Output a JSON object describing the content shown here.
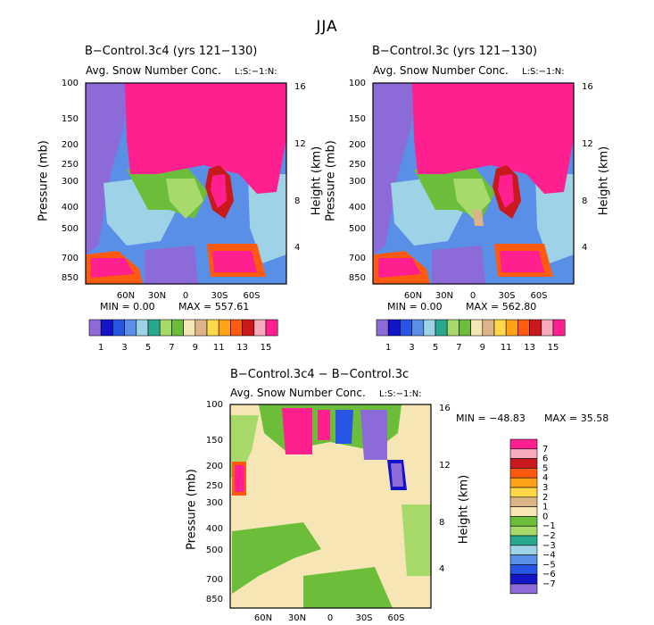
{
  "page": {
    "title": "JJA"
  },
  "colors": {
    "abs_levels": [
      "#8c6bd8",
      "#1313c8",
      "#2755e6",
      "#5a8fe8",
      "#9ed2e6",
      "#2aa88f",
      "#a7d96b",
      "#6cbd3a",
      "#f6e6b6",
      "#dcb487",
      "#ffd84a",
      "#ffa21a",
      "#ff5a10",
      "#c9191c",
      "#f7aabb",
      "#ff1f8f"
    ],
    "diff_levels": [
      "#8c6bd8",
      "#1313c8",
      "#2755e6",
      "#5a8fe8",
      "#9ed2e6",
      "#2aa88f",
      "#a7d96b",
      "#6cbd3a",
      "#f6e6b6",
      "#dcb487",
      "#ffd84a",
      "#ffa21a",
      "#ff5a10",
      "#c9191c",
      "#f7aabb",
      "#ff1f8f"
    ]
  },
  "chart_data": [
    {
      "type": "heatmap",
      "title": "B−Control.3c4 (yrs 121−130)",
      "subtitle": "Avg. Snow Number Conc.",
      "side_label": "L:S:−1:N:",
      "ylabel": "Pressure (mb)",
      "ylabel_right": "Height (km)",
      "x_ticks": [
        "60N",
        "30N",
        "0",
        "30S",
        "60S"
      ],
      "y_ticks": [
        "100",
        "150",
        "200",
        "250",
        "300",
        "400",
        "500",
        "700",
        "850"
      ],
      "y_ticks_right": [
        "16",
        "12",
        "8",
        "4"
      ],
      "min_text": "MIN =    0.00",
      "max_text": "MAX = 557.61",
      "colorbar_labels": [
        "1",
        "3",
        "5",
        "7",
        "9",
        "11",
        "13",
        "15"
      ],
      "colorbar_levels": 16
    },
    {
      "type": "heatmap",
      "title": "B−Control.3c (yrs 121−130)",
      "subtitle": "Avg. Snow Number Conc.",
      "side_label": "L:S:−1:N:",
      "ylabel": "Pressure (mb)",
      "ylabel_right": "Height (km)",
      "x_ticks": [
        "60N",
        "30N",
        "0",
        "30S",
        "60S"
      ],
      "y_ticks": [
        "100",
        "150",
        "200",
        "250",
        "300",
        "400",
        "500",
        "700",
        "850"
      ],
      "y_ticks_right": [
        "16",
        "12",
        "8",
        "4"
      ],
      "min_text": "MIN =    0.00",
      "max_text": "MAX = 562.80",
      "colorbar_labels": [
        "1",
        "3",
        "5",
        "7",
        "9",
        "11",
        "13",
        "15"
      ],
      "colorbar_levels": 16
    },
    {
      "type": "heatmap",
      "title": "B−Control.3c4 − B−Control.3c",
      "subtitle": "Avg. Snow Number Conc.",
      "side_label": "L:S:−1:N:",
      "ylabel": "Pressure (mb)",
      "ylabel_right": "Height (km)",
      "x_ticks": [
        "60N",
        "30N",
        "0",
        "30S",
        "60S"
      ],
      "y_ticks": [
        "100",
        "150",
        "200",
        "250",
        "300",
        "400",
        "500",
        "700",
        "850"
      ],
      "y_ticks_right": [
        "16",
        "12",
        "8",
        "4"
      ],
      "min_text": "MIN = −48.83",
      "max_text": "MAX =  35.58",
      "colorbar_labels": [
        "7",
        "6",
        "5",
        "4",
        "3",
        "2",
        "1",
        "0",
        "−1",
        "−2",
        "−3",
        "−4",
        "−5",
        "−6",
        "−7"
      ],
      "colorbar_levels": 16
    }
  ]
}
